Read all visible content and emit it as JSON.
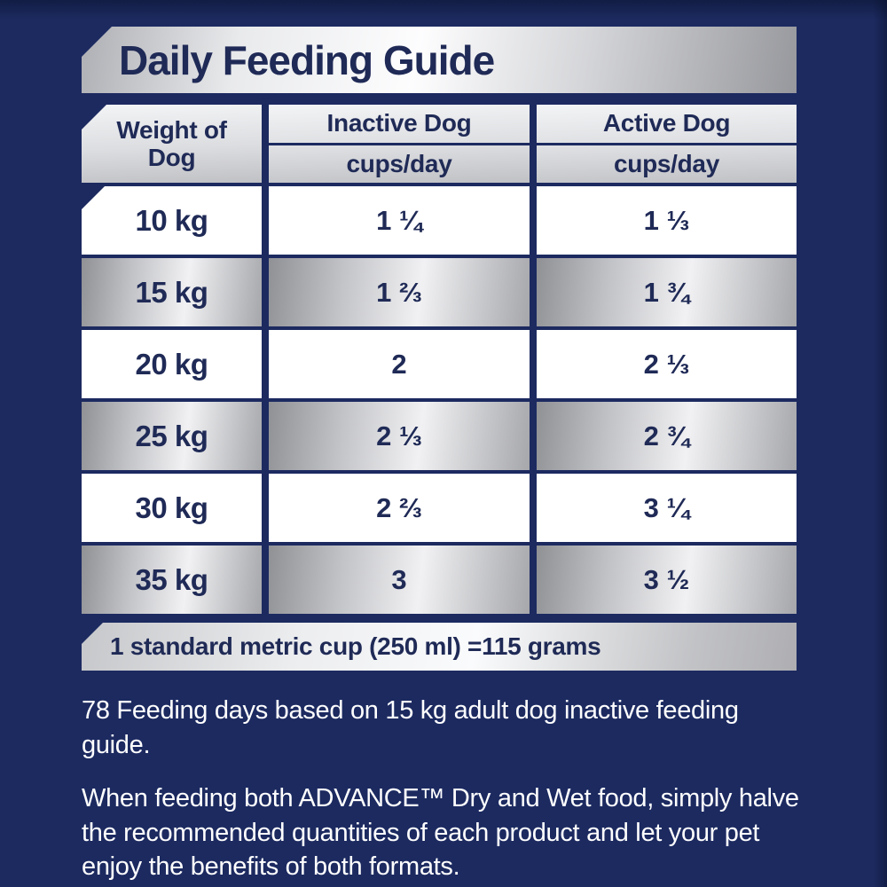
{
  "colors": {
    "background_navy": "#1c2a60",
    "text_navy": "#1f2a56",
    "silver_light": "#f1f1f3",
    "silver_dark": "#97989d",
    "row_white": "#ffffff",
    "note_text": "#ffffff"
  },
  "title": "Daily Feeding Guide",
  "table": {
    "columns": [
      {
        "label": "Weight of Dog"
      },
      {
        "label": "Inactive Dog",
        "sublabel": "cups/day"
      },
      {
        "label": "Active Dog",
        "sublabel": "cups/day"
      }
    ],
    "rows": [
      {
        "weight": "10 kg",
        "inactive": "1 ¼",
        "active": "1 ⅓"
      },
      {
        "weight": "15 kg",
        "inactive": "1 ⅔",
        "active": "1 ¾"
      },
      {
        "weight": "20 kg",
        "inactive": "2",
        "active": "2 ⅓"
      },
      {
        "weight": "25 kg",
        "inactive": "2 ⅓",
        "active": "2 ¾"
      },
      {
        "weight": "30 kg",
        "inactive": "2 ⅔",
        "active": "3 ¼"
      },
      {
        "weight": "35 kg",
        "inactive": "3",
        "active": "3 ½"
      }
    ],
    "footnote": "1 standard metric cup (250 ml) =115 grams"
  },
  "notes": [
    "78 Feeding days based on 15 kg adult dog inactive feeding guide.",
    "When feeding both ADVANCE™ Dry and Wet food, simply halve the recommended quantities of each product and let your pet enjoy the benefits of both formats."
  ],
  "chart_data": {
    "type": "table",
    "title": "Daily Feeding Guide",
    "categories": [
      "10 kg",
      "15 kg",
      "20 kg",
      "25 kg",
      "30 kg",
      "35 kg"
    ],
    "series": [
      {
        "name": "Inactive Dog (cups/day)",
        "values": [
          1.25,
          1.67,
          2,
          2.33,
          2.67,
          3
        ],
        "labels": [
          "1 ¼",
          "1 ⅔",
          "2",
          "2 ⅓",
          "2 ⅔",
          "3"
        ]
      },
      {
        "name": "Active Dog (cups/day)",
        "values": [
          1.33,
          1.75,
          2.33,
          2.75,
          3.25,
          3.5
        ],
        "labels": [
          "1 ⅓",
          "1 ¾",
          "2 ⅓",
          "2 ¾",
          "3 ¼",
          "3 ½"
        ]
      }
    ],
    "xlabel": "Weight of Dog",
    "footnote": "1 standard metric cup (250 ml) =115 grams"
  }
}
